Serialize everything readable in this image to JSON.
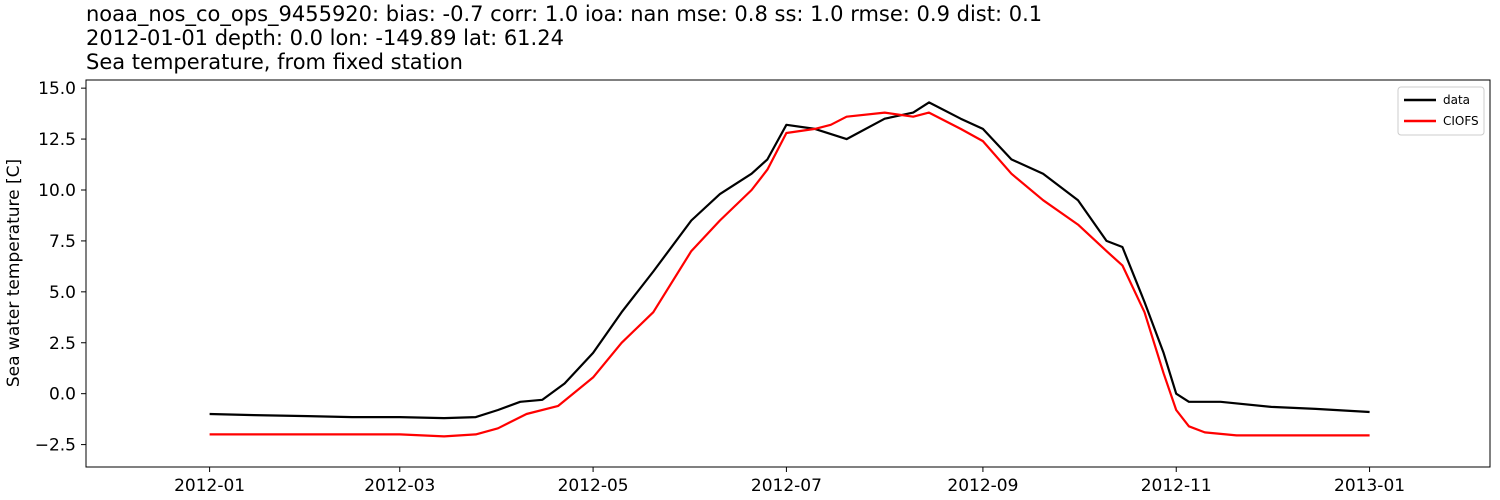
{
  "chart_data": {
    "type": "line",
    "title_lines": [
      "noaa_nos_co_ops_9455920: bias: -0.7  corr: 1.0  ioa: nan  mse: 0.8  ss: 1.0  rmse: 0.9  dist: 0.1",
      "2012-01-01 depth: 0.0 lon: -149.89 lat: 61.24",
      "Sea temperature, from fixed station"
    ],
    "xlabel": "",
    "ylabel": "Sea water temperature [C]",
    "xlim": [
      "2011-11-23",
      "2013-02-08"
    ],
    "ylim": [
      -3.6,
      15.4
    ],
    "x_ticks": [
      "2012-01",
      "2012-03",
      "2012-05",
      "2012-07",
      "2012-09",
      "2012-11",
      "2013-01"
    ],
    "y_ticks": [
      -2.5,
      0.0,
      2.5,
      5.0,
      7.5,
      10.0,
      12.5,
      15.0
    ],
    "y_tick_labels": [
      "−2.5",
      "0.0",
      "2.5",
      "5.0",
      "7.5",
      "10.0",
      "12.5",
      "15.0"
    ],
    "grid": false,
    "legend_position": "top-right",
    "series": [
      {
        "name": "data",
        "color": "#000000",
        "x": [
          "2012-01-01",
          "2012-01-15",
          "2012-02-01",
          "2012-02-15",
          "2012-03-01",
          "2012-03-15",
          "2012-03-25",
          "2012-04-01",
          "2012-04-08",
          "2012-04-15",
          "2012-04-22",
          "2012-05-01",
          "2012-05-10",
          "2012-05-20",
          "2012-06-01",
          "2012-06-10",
          "2012-06-20",
          "2012-06-25",
          "2012-07-01",
          "2012-07-10",
          "2012-07-20",
          "2012-08-01",
          "2012-08-10",
          "2012-08-15",
          "2012-08-25",
          "2012-09-01",
          "2012-09-10",
          "2012-09-20",
          "2012-10-01",
          "2012-10-10",
          "2012-10-15",
          "2012-10-22",
          "2012-10-28",
          "2012-11-01",
          "2012-11-05",
          "2012-11-15",
          "2012-12-01",
          "2012-12-15",
          "2013-01-01"
        ],
        "y": [
          -1.0,
          -1.05,
          -1.1,
          -1.15,
          -1.15,
          -1.2,
          -1.15,
          -0.8,
          -0.4,
          -0.3,
          0.5,
          2.0,
          4.0,
          6.0,
          8.5,
          9.8,
          10.8,
          11.5,
          13.2,
          13.0,
          12.5,
          13.5,
          13.8,
          14.3,
          13.5,
          13.0,
          11.5,
          10.8,
          9.5,
          7.5,
          7.2,
          4.5,
          2.0,
          0.0,
          -0.4,
          -0.4,
          -0.65,
          -0.75,
          -0.9
        ]
      },
      {
        "name": "CIOFS",
        "color": "#ff0000",
        "x": [
          "2012-01-01",
          "2012-01-15",
          "2012-02-01",
          "2012-03-01",
          "2012-03-15",
          "2012-03-25",
          "2012-04-01",
          "2012-04-10",
          "2012-04-20",
          "2012-05-01",
          "2012-05-10",
          "2012-05-20",
          "2012-06-01",
          "2012-06-10",
          "2012-06-20",
          "2012-06-25",
          "2012-07-01",
          "2012-07-10",
          "2012-07-15",
          "2012-07-20",
          "2012-08-01",
          "2012-08-10",
          "2012-08-15",
          "2012-08-25",
          "2012-09-01",
          "2012-09-10",
          "2012-09-20",
          "2012-10-01",
          "2012-10-10",
          "2012-10-15",
          "2012-10-22",
          "2012-10-28",
          "2012-11-01",
          "2012-11-05",
          "2012-11-10",
          "2012-11-20",
          "2012-12-01",
          "2012-12-15",
          "2013-01-01"
        ],
        "y": [
          -2.0,
          -2.0,
          -2.0,
          -2.0,
          -2.1,
          -2.0,
          -1.7,
          -1.0,
          -0.6,
          0.8,
          2.5,
          4.0,
          7.0,
          8.5,
          10.0,
          11.0,
          12.8,
          13.0,
          13.2,
          13.6,
          13.8,
          13.6,
          13.8,
          13.0,
          12.4,
          10.8,
          9.5,
          8.3,
          7.0,
          6.3,
          4.0,
          1.0,
          -0.8,
          -1.6,
          -1.9,
          -2.05,
          -2.05,
          -2.05,
          -2.05
        ]
      }
    ]
  }
}
